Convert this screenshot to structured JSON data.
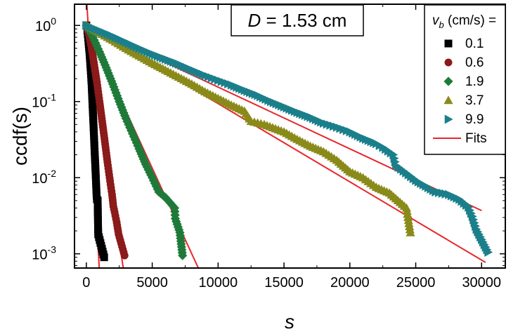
{
  "chart_data": {
    "type": "scatter",
    "x_scale": "linear",
    "y_scale": "log",
    "xlabel": "s",
    "ylabel": "ccdf(s)",
    "xlim": [
      -900,
      31800
    ],
    "ylim": [
      0.00065,
      1.9
    ],
    "x_ticks": [
      0,
      5000,
      10000,
      15000,
      20000,
      25000,
      30000
    ],
    "x_tick_labels": [
      "0",
      "5000",
      "10000",
      "15000",
      "20000",
      "25000",
      "30000"
    ],
    "y_ticks": [
      0.001,
      0.01,
      0.1,
      1
    ],
    "y_tick_labels": [
      {
        "mantissa": "10",
        "exponent": "-3"
      },
      {
        "mantissa": "10",
        "exponent": "-2"
      },
      {
        "mantissa": "10",
        "exponent": "-1"
      },
      {
        "mantissa": "10",
        "exponent": "0"
      }
    ],
    "annotation": {
      "italic": "D",
      "text": " = 1.53 cm"
    },
    "legend": {
      "title_symbol": "v",
      "title_subscript": "b",
      "title_rest": " (cm/s) =",
      "fits_label": "Fits",
      "position": "top-right"
    },
    "series": [
      {
        "name": "0.1",
        "marker": "square",
        "color": "#000000",
        "points": [
          [
            0,
            1
          ],
          [
            80,
            0.85
          ],
          [
            160,
            0.62
          ],
          [
            240,
            0.44
          ],
          [
            320,
            0.28
          ],
          [
            400,
            0.17
          ],
          [
            460,
            0.1
          ],
          [
            520,
            0.06
          ],
          [
            580,
            0.035
          ],
          [
            640,
            0.02
          ],
          [
            700,
            0.012
          ],
          [
            750,
            0.0075
          ],
          [
            780,
            0.0058
          ],
          [
            800,
            0.0052
          ],
          [
            860,
            0.005
          ],
          [
            870,
            0.0035
          ],
          [
            880,
            0.0028
          ],
          [
            900,
            0.0018
          ],
          [
            1350,
            0.0009
          ]
        ]
      },
      {
        "name": "0.6",
        "marker": "circle",
        "color": "#8b1a1a",
        "points": [
          [
            0,
            1
          ],
          [
            200,
            0.75
          ],
          [
            400,
            0.5
          ],
          [
            600,
            0.3
          ],
          [
            800,
            0.18
          ],
          [
            1000,
            0.1
          ],
          [
            1200,
            0.055
          ],
          [
            1400,
            0.03
          ],
          [
            1600,
            0.016
          ],
          [
            1800,
            0.009
          ],
          [
            1950,
            0.006
          ],
          [
            2050,
            0.0042
          ],
          [
            2150,
            0.0035
          ],
          [
            2300,
            0.0026
          ],
          [
            2450,
            0.0018
          ],
          [
            2900,
            0.00095
          ]
        ]
      },
      {
        "name": "1.9",
        "marker": "diamond",
        "color": "#1f7a3a",
        "points": [
          [
            0,
            1
          ],
          [
            500,
            0.7
          ],
          [
            1000,
            0.45
          ],
          [
            1500,
            0.28
          ],
          [
            2000,
            0.17
          ],
          [
            2500,
            0.1
          ],
          [
            3000,
            0.06
          ],
          [
            3500,
            0.038
          ],
          [
            4000,
            0.024
          ],
          [
            4500,
            0.015
          ],
          [
            5000,
            0.01
          ],
          [
            5500,
            0.0065
          ],
          [
            6000,
            0.0055
          ],
          [
            6700,
            0.004
          ],
          [
            6750,
            0.0029
          ],
          [
            7100,
            0.0019
          ],
          [
            7300,
            0.00095
          ]
        ]
      },
      {
        "name": "3.7",
        "marker": "triangle-up",
        "color": "#8a8a1a",
        "points": [
          [
            0,
            1
          ],
          [
            1000,
            0.8
          ],
          [
            2000,
            0.64
          ],
          [
            3000,
            0.5
          ],
          [
            4000,
            0.4
          ],
          [
            5000,
            0.32
          ],
          [
            6000,
            0.26
          ],
          [
            7000,
            0.21
          ],
          [
            8000,
            0.17
          ],
          [
            9000,
            0.135
          ],
          [
            10000,
            0.11
          ],
          [
            11000,
            0.09
          ],
          [
            12000,
            0.075
          ],
          [
            12500,
            0.055
          ],
          [
            13500,
            0.05
          ],
          [
            15000,
            0.04
          ],
          [
            16000,
            0.032
          ],
          [
            17000,
            0.026
          ],
          [
            18000,
            0.022
          ],
          [
            19000,
            0.017
          ],
          [
            20000,
            0.012
          ],
          [
            21000,
            0.01
          ],
          [
            22000,
            0.0075
          ],
          [
            23000,
            0.0063
          ],
          [
            24300,
            0.004
          ],
          [
            24600,
            0.0019
          ]
        ]
      },
      {
        "name": "9.9",
        "marker": "triangle-right",
        "color": "#1a7f8a",
        "points": [
          [
            0,
            1
          ],
          [
            1000,
            0.85
          ],
          [
            2000,
            0.72
          ],
          [
            3000,
            0.6
          ],
          [
            4000,
            0.5
          ],
          [
            5000,
            0.42
          ],
          [
            6000,
            0.36
          ],
          [
            7000,
            0.31
          ],
          [
            8000,
            0.26
          ],
          [
            9000,
            0.22
          ],
          [
            10000,
            0.19
          ],
          [
            11000,
            0.165
          ],
          [
            12000,
            0.14
          ],
          [
            13000,
            0.12
          ],
          [
            14000,
            0.1
          ],
          [
            15000,
            0.085
          ],
          [
            16000,
            0.072
          ],
          [
            17000,
            0.062
          ],
          [
            18000,
            0.052
          ],
          [
            19000,
            0.046
          ],
          [
            20000,
            0.04
          ],
          [
            21000,
            0.033
          ],
          [
            22000,
            0.028
          ],
          [
            22500,
            0.025
          ],
          [
            23300,
            0.02
          ],
          [
            23500,
            0.0145
          ],
          [
            25000,
            0.0092
          ],
          [
            26500,
            0.0065
          ],
          [
            27500,
            0.006
          ],
          [
            28300,
            0.0052
          ],
          [
            29000,
            0.0041
          ],
          [
            29300,
            0.0031
          ],
          [
            29600,
            0.0021
          ],
          [
            30500,
            0.00105
          ]
        ]
      }
    ],
    "fits": [
      {
        "series": "0.1",
        "color": "#e8262b",
        "points": [
          [
            0,
            1.05
          ],
          [
            980,
            0.00065
          ]
        ]
      },
      {
        "series": "0.6",
        "color": "#e8262b",
        "points": [
          [
            0,
            1
          ],
          [
            2800,
            0.00065
          ]
        ]
      },
      {
        "series": "1.9",
        "color": "#e8262b",
        "points": [
          [
            0,
            1
          ],
          [
            8500,
            0.00065
          ]
        ]
      },
      {
        "series": "3.7",
        "color": "#e8262b",
        "points": [
          [
            0,
            1
          ],
          [
            30300,
            0.00077
          ]
        ]
      },
      {
        "series": "9.9",
        "color": "#e8262b",
        "points": [
          [
            0,
            1
          ],
          [
            30000,
            0.0037
          ]
        ]
      },
      {
        "series": "steep",
        "color": "#e8262b",
        "points": [
          [
            40,
            1.9
          ],
          [
            550,
            0.07
          ]
        ]
      }
    ]
  }
}
